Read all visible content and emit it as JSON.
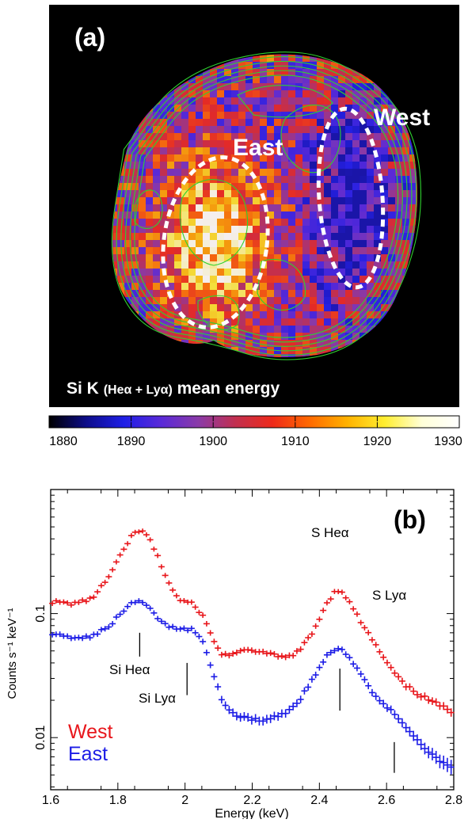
{
  "panel_a": {
    "label": "(a)",
    "region_east": "East",
    "region_west": "West",
    "caption_main": "Si K ",
    "caption_paren": "(Heα + Lyα)",
    "caption_tail": " mean energy",
    "colors": {
      "background": "#000000",
      "contour": "#2fd12f",
      "region_outline": "#ffffff"
    },
    "colorbar": {
      "min": 1880,
      "max": 1930,
      "ticks": [
        "1880",
        "1890",
        "1900",
        "1910",
        "1920",
        "1930"
      ],
      "colormap": [
        "#000000",
        "#0d0d8a",
        "#1f1fe6",
        "#5a2ad8",
        "#8a3aa8",
        "#c2304f",
        "#ee2a1a",
        "#ff6a00",
        "#ffb200",
        "#ffee30",
        "#ffffd8",
        "#ffffff"
      ]
    }
  },
  "panel_b": {
    "label": "(b)",
    "chart_data": {
      "type": "scatter",
      "xlabel": "Energy (keV)",
      "ylabel": "Counts s⁻¹ keV⁻¹",
      "xlim": [
        1.6,
        2.8
      ],
      "ylim": [
        0.0038,
        1.0
      ],
      "yscale": "log",
      "x_ticks": [
        "1.6",
        "1.8",
        "2",
        "2.2",
        "2.4",
        "2.6",
        "2.8"
      ],
      "y_ticks": [
        {
          "value": 0.1,
          "label": "0.1"
        },
        {
          "value": 0.01,
          "label": "0.01"
        }
      ],
      "legend": [
        {
          "text": "West",
          "color": "#e8161b"
        },
        {
          "text": "East",
          "color": "#1c1ce6"
        }
      ],
      "line_labels": [
        {
          "text": "Si Heα",
          "energy": 1.865
        },
        {
          "text": "Si Lyα",
          "energy": 2.006
        },
        {
          "text": "S Heα",
          "energy": 2.461
        },
        {
          "text": "S Lyα",
          "energy": 2.623
        }
      ],
      "series": [
        {
          "name": "West",
          "color": "#e8161b",
          "anchors": [
            [
              1.6,
              0.125
            ],
            [
              1.66,
              0.12
            ],
            [
              1.72,
              0.13
            ],
            [
              1.77,
              0.19
            ],
            [
              1.81,
              0.3
            ],
            [
              1.84,
              0.42
            ],
            [
              1.865,
              0.47
            ],
            [
              1.89,
              0.42
            ],
            [
              1.92,
              0.28
            ],
            [
              1.95,
              0.18
            ],
            [
              1.98,
              0.13
            ],
            [
              2.02,
              0.12
            ],
            [
              2.05,
              0.1
            ],
            [
              2.08,
              0.065
            ],
            [
              2.11,
              0.046
            ],
            [
              2.15,
              0.048
            ],
            [
              2.2,
              0.051
            ],
            [
              2.25,
              0.047
            ],
            [
              2.3,
              0.044
            ],
            [
              2.34,
              0.05
            ],
            [
              2.38,
              0.07
            ],
            [
              2.42,
              0.12
            ],
            [
              2.45,
              0.155
            ],
            [
              2.47,
              0.15
            ],
            [
              2.5,
              0.11
            ],
            [
              2.53,
              0.08
            ],
            [
              2.56,
              0.06
            ],
            [
              2.6,
              0.04
            ],
            [
              2.65,
              0.027
            ],
            [
              2.7,
              0.022
            ],
            [
              2.76,
              0.018
            ],
            [
              2.8,
              0.016
            ]
          ]
        },
        {
          "name": "East",
          "color": "#1c1ce6",
          "anchors": [
            [
              1.6,
              0.07
            ],
            [
              1.66,
              0.065
            ],
            [
              1.72,
              0.064
            ],
            [
              1.77,
              0.078
            ],
            [
              1.81,
              0.1
            ],
            [
              1.84,
              0.12
            ],
            [
              1.865,
              0.128
            ],
            [
              1.89,
              0.115
            ],
            [
              1.92,
              0.09
            ],
            [
              1.95,
              0.077
            ],
            [
              1.98,
              0.076
            ],
            [
              2.02,
              0.075
            ],
            [
              2.05,
              0.062
            ],
            [
              2.08,
              0.035
            ],
            [
              2.11,
              0.02
            ],
            [
              2.15,
              0.015
            ],
            [
              2.2,
              0.014
            ],
            [
              2.25,
              0.014
            ],
            [
              2.3,
              0.016
            ],
            [
              2.34,
              0.02
            ],
            [
              2.38,
              0.03
            ],
            [
              2.42,
              0.045
            ],
            [
              2.45,
              0.053
            ],
            [
              2.47,
              0.052
            ],
            [
              2.5,
              0.04
            ],
            [
              2.53,
              0.03
            ],
            [
              2.56,
              0.022
            ],
            [
              2.6,
              0.018
            ],
            [
              2.65,
              0.013
            ],
            [
              2.7,
              0.009
            ],
            [
              2.76,
              0.0065
            ],
            [
              2.8,
              0.0055
            ]
          ]
        }
      ]
    }
  }
}
